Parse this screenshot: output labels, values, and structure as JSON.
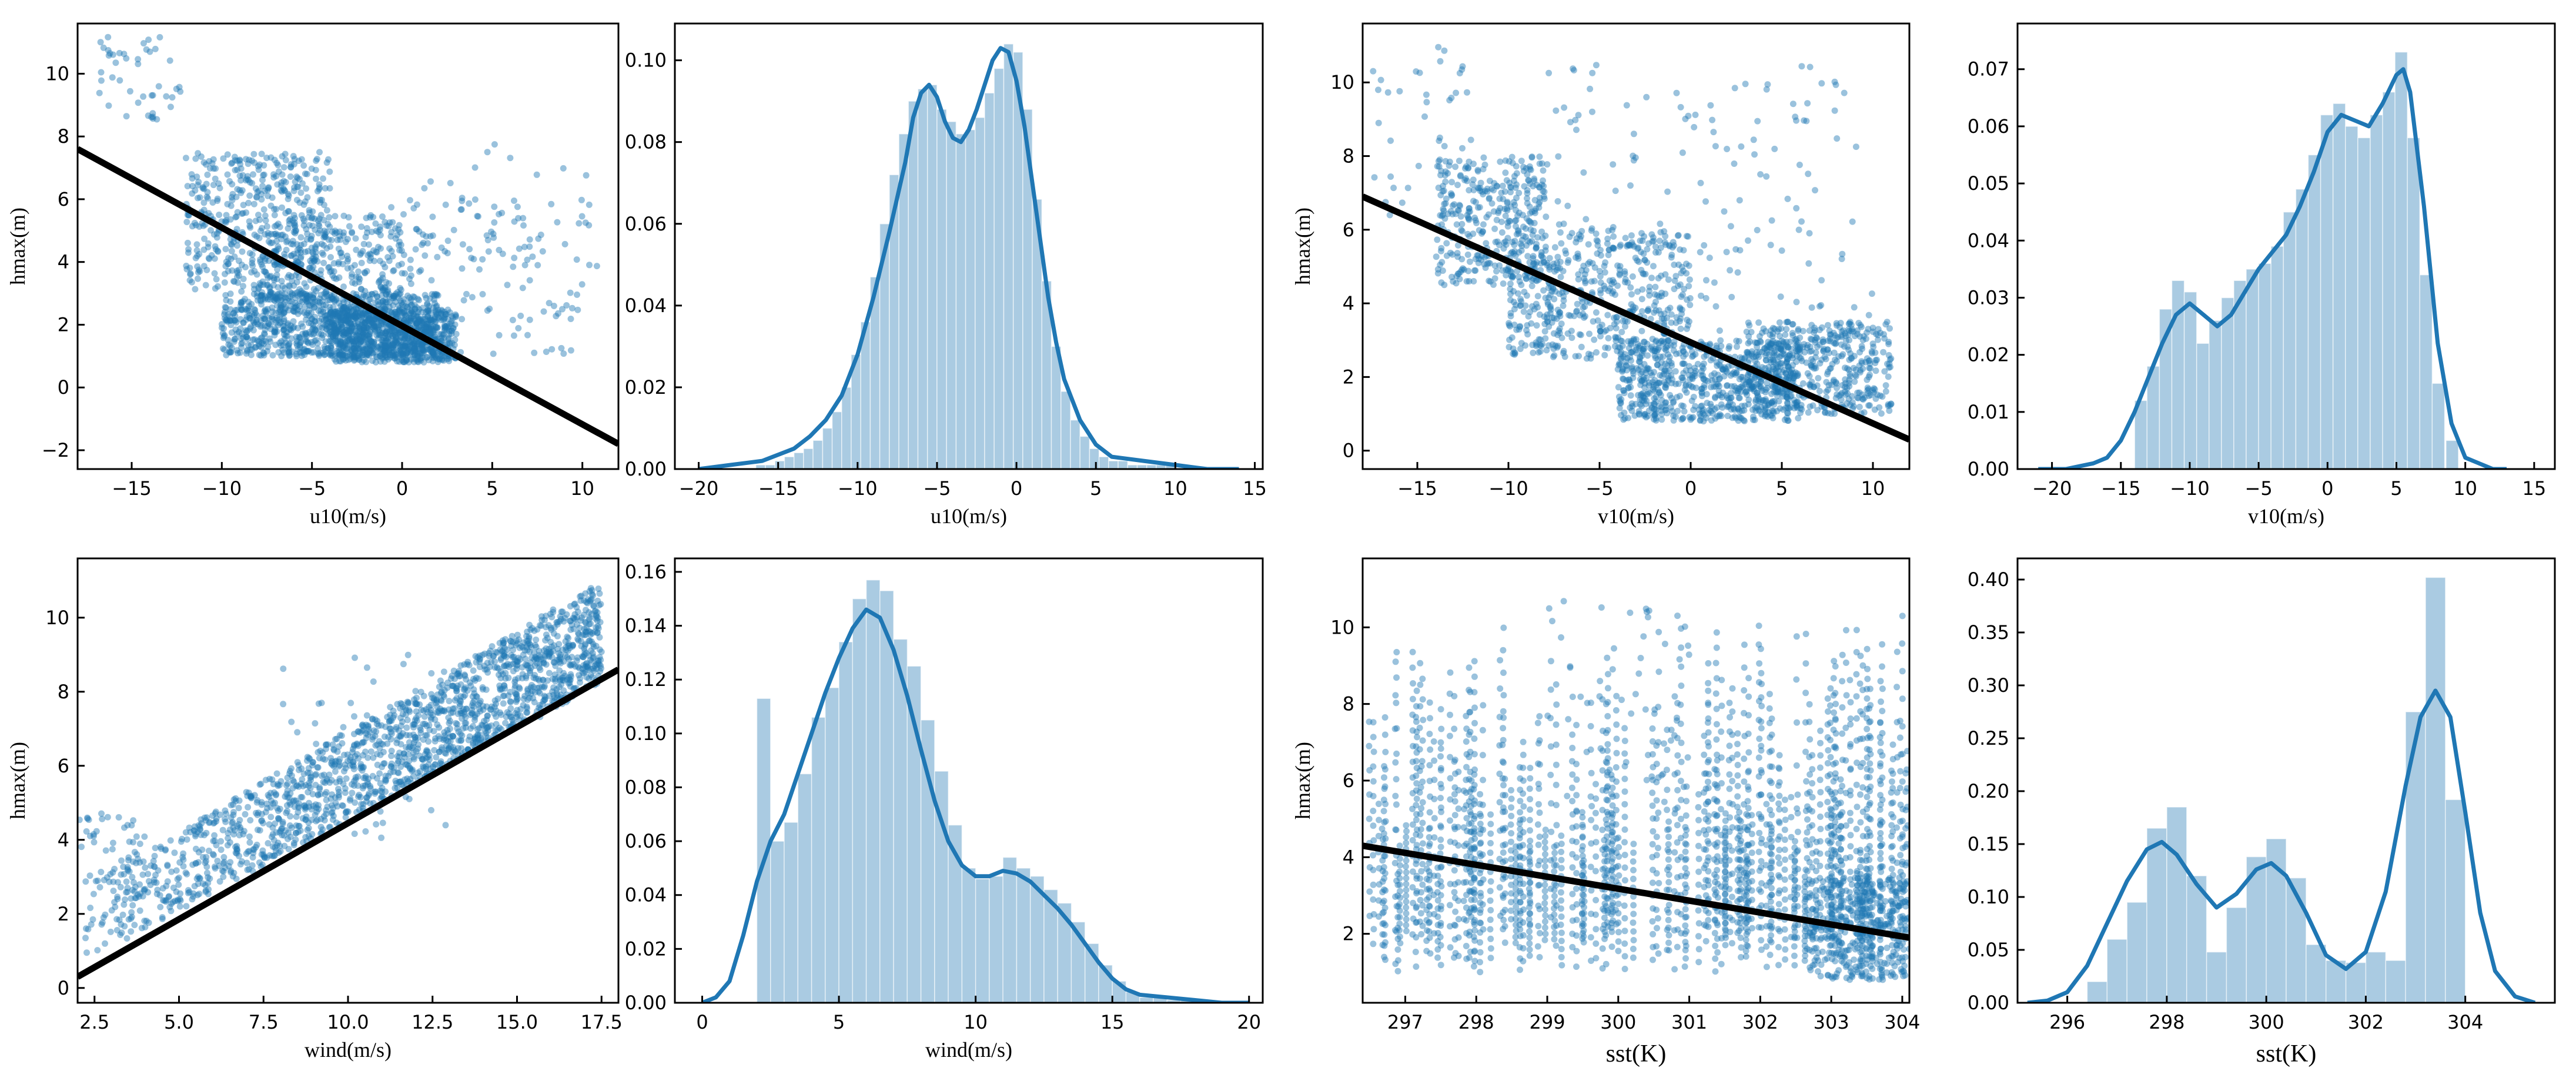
{
  "figure": {
    "title": ""
  },
  "chart_data": [
    {
      "type": "scatter",
      "id": "p1",
      "xlabel": "u10(m/s)",
      "ylabel": "hmax(m)",
      "xlim": [
        -18,
        12
      ],
      "ylim": [
        -2.6,
        11.6
      ],
      "xticks": [
        -15,
        -10,
        -5,
        0,
        5,
        10
      ],
      "xtick_labels": [
        "−15",
        "−10",
        "−5",
        "0",
        "5",
        "10"
      ],
      "yticks": [
        -2,
        0,
        2,
        4,
        6,
        8,
        10
      ],
      "ytick_labels": [
        "−2",
        "0",
        "2",
        "4",
        "6",
        "8",
        "10"
      ],
      "fit_line": {
        "x": [
          -18,
          12
        ],
        "y": [
          7.6,
          -1.8
        ]
      },
      "clusters": [
        {
          "x": [
            -10,
            2
          ],
          "y": [
            1.0,
            3.0
          ],
          "n": 900
        },
        {
          "x": [
            -4,
            3
          ],
          "y": [
            0.8,
            2.5
          ],
          "n": 700
        },
        {
          "x": [
            -12,
            -4
          ],
          "y": [
            3.0,
            7.5
          ],
          "n": 450
        },
        {
          "x": [
            -8,
            0
          ],
          "y": [
            2.5,
            5.5
          ],
          "n": 300
        },
        {
          "x": [
            -17,
            -12
          ],
          "y": [
            8.5,
            11.2
          ],
          "n": 45
        },
        {
          "x": [
            -2,
            10
          ],
          "y": [
            1.0,
            6.0
          ],
          "n": 140
        },
        {
          "x": [
            0,
            11
          ],
          "y": [
            3.0,
            8.0
          ],
          "n": 40
        }
      ]
    },
    {
      "type": "bar",
      "id": "p2",
      "xlabel": "u10(m/s)",
      "ylabel": "",
      "xlim": [
        -21.5,
        15.5
      ],
      "ylim": [
        0,
        0.109
      ],
      "xticks": [
        -20,
        -15,
        -10,
        -5,
        0,
        5,
        10,
        15
      ],
      "xtick_labels": [
        "−20",
        "−15",
        "−10",
        "−5",
        "0",
        "5",
        "10",
        "15"
      ],
      "yticks": [
        0,
        0.02,
        0.04,
        0.06,
        0.08,
        0.1
      ],
      "ytick_labels": [
        "0.00",
        "0.02",
        "0.04",
        "0.06",
        "0.08",
        "0.10"
      ],
      "bin_width": 0.6,
      "bins": [
        -16.4,
        -15.8,
        -15.2,
        -14.6,
        -14.0,
        -13.4,
        -12.8,
        -12.2,
        -11.6,
        -11.0,
        -10.4,
        -9.8,
        -9.2,
        -8.6,
        -8.0,
        -7.4,
        -6.8,
        -6.2,
        -5.6,
        -5.0,
        -4.4,
        -3.8,
        -3.2,
        -2.6,
        -2.0,
        -1.4,
        -0.8,
        -0.2,
        0.4,
        1.0,
        1.6,
        2.2,
        2.8,
        3.4,
        4.0,
        4.6,
        5.2,
        5.8,
        6.4,
        7.0,
        7.6,
        8.2,
        8.8,
        9.4
      ],
      "values": [
        0.001,
        0.001,
        0.002,
        0.003,
        0.004,
        0.005,
        0.007,
        0.01,
        0.014,
        0.02,
        0.028,
        0.036,
        0.047,
        0.06,
        0.072,
        0.082,
        0.09,
        0.093,
        0.094,
        0.088,
        0.085,
        0.082,
        0.083,
        0.086,
        0.092,
        0.098,
        0.104,
        0.102,
        0.088,
        0.066,
        0.046,
        0.03,
        0.019,
        0.012,
        0.008,
        0.005,
        0.003,
        0.002,
        0.002,
        0.001,
        0.001,
        0.001,
        0.001,
        0.001
      ],
      "kde": {
        "x": [
          -20,
          -18,
          -16,
          -14,
          -13,
          -12,
          -11,
          -10,
          -9,
          -8,
          -7,
          -6.5,
          -6,
          -5.5,
          -5,
          -4.5,
          -4,
          -3.5,
          -3,
          -2.5,
          -2,
          -1.5,
          -1,
          -0.5,
          0,
          0.5,
          1,
          1.5,
          2,
          2.5,
          3,
          4,
          5,
          6,
          8,
          10,
          12,
          14
        ],
        "y": [
          0.0,
          0.001,
          0.002,
          0.005,
          0.008,
          0.012,
          0.018,
          0.028,
          0.042,
          0.058,
          0.075,
          0.086,
          0.092,
          0.094,
          0.091,
          0.085,
          0.081,
          0.08,
          0.083,
          0.088,
          0.094,
          0.1,
          0.103,
          0.102,
          0.095,
          0.084,
          0.07,
          0.056,
          0.042,
          0.031,
          0.022,
          0.012,
          0.006,
          0.003,
          0.002,
          0.001,
          0.0,
          0.0
        ]
      }
    },
    {
      "type": "scatter",
      "id": "p3",
      "xlabel": "v10(m/s)",
      "ylabel": "hmax(m)",
      "xlim": [
        -18,
        12
      ],
      "ylim": [
        -0.5,
        11.6
      ],
      "xticks": [
        -15,
        -10,
        -5,
        0,
        5,
        10
      ],
      "xtick_labels": [
        "−15",
        "−10",
        "−5",
        "0",
        "5",
        "10"
      ],
      "yticks": [
        0,
        2,
        4,
        6,
        8,
        10
      ],
      "ytick_labels": [
        "0",
        "2",
        "4",
        "6",
        "8",
        "10"
      ],
      "fit_line": {
        "x": [
          -18,
          12
        ],
        "y": [
          6.9,
          0.3
        ]
      },
      "clusters": [
        {
          "x": [
            -14,
            -8
          ],
          "y": [
            4.5,
            8.0
          ],
          "n": 350
        },
        {
          "x": [
            -10,
            0
          ],
          "y": [
            2.5,
            6.0
          ],
          "n": 500
        },
        {
          "x": [
            -4,
            6
          ],
          "y": [
            0.8,
            3.0
          ],
          "n": 700
        },
        {
          "x": [
            3,
            11
          ],
          "y": [
            1.0,
            3.5
          ],
          "n": 450
        },
        {
          "x": [
            -8,
            10
          ],
          "y": [
            3.0,
            10.5
          ],
          "n": 160
        },
        {
          "x": [
            -18,
            -12
          ],
          "y": [
            6.0,
            11.2
          ],
          "n": 40
        }
      ]
    },
    {
      "type": "bar",
      "id": "p4",
      "xlabel": "v10(m/s)",
      "ylabel": "",
      "xlim": [
        -22.5,
        16.5
      ],
      "ylim": [
        0,
        0.078
      ],
      "xticks": [
        -20,
        -15,
        -10,
        -5,
        0,
        5,
        10,
        15
      ],
      "xtick_labels": [
        "−20",
        "−15",
        "−10",
        "−5",
        "0",
        "5",
        "10",
        "15"
      ],
      "yticks": [
        0,
        0.01,
        0.02,
        0.03,
        0.04,
        0.05,
        0.06,
        0.07
      ],
      "ytick_labels": [
        "0.00",
        "0.01",
        "0.02",
        "0.03",
        "0.04",
        "0.05",
        "0.06",
        "0.07"
      ],
      "bin_width": 0.9,
      "bins": [
        -14.0,
        -13.1,
        -12.2,
        -11.3,
        -10.4,
        -9.5,
        -8.6,
        -7.7,
        -6.8,
        -5.9,
        -5.0,
        -4.1,
        -3.2,
        -2.3,
        -1.4,
        -0.5,
        0.4,
        1.3,
        2.2,
        3.1,
        4.0,
        4.9,
        5.8,
        6.7,
        7.6,
        8.6
      ],
      "values": [
        0.012,
        0.018,
        0.028,
        0.033,
        0.031,
        0.022,
        0.026,
        0.03,
        0.033,
        0.035,
        0.036,
        0.039,
        0.045,
        0.049,
        0.055,
        0.062,
        0.064,
        0.06,
        0.058,
        0.062,
        0.066,
        0.073,
        0.058,
        0.034,
        0.015,
        0.005
      ],
      "kde": {
        "x": [
          -21,
          -19,
          -17,
          -16,
          -15,
          -14,
          -13,
          -12,
          -11,
          -10,
          -9,
          -8,
          -7,
          -6,
          -5,
          -4,
          -3,
          -2,
          -1,
          0,
          1,
          2,
          3,
          4,
          5,
          5.5,
          6,
          7,
          8,
          9,
          10,
          11,
          12,
          13
        ],
        "y": [
          0.0,
          0.0,
          0.001,
          0.002,
          0.005,
          0.01,
          0.016,
          0.022,
          0.027,
          0.029,
          0.027,
          0.025,
          0.027,
          0.031,
          0.035,
          0.038,
          0.041,
          0.046,
          0.052,
          0.059,
          0.062,
          0.061,
          0.06,
          0.064,
          0.069,
          0.07,
          0.066,
          0.046,
          0.022,
          0.008,
          0.002,
          0.001,
          0.0,
          0.0
        ]
      }
    },
    {
      "type": "scatter",
      "id": "p5",
      "xlabel": "wind(m/s)",
      "ylabel": "hmax(m)",
      "xlim": [
        2.0,
        18.0
      ],
      "ylim": [
        -0.4,
        11.6
      ],
      "xticks": [
        2.5,
        5.0,
        7.5,
        10.0,
        12.5,
        15.0,
        17.5
      ],
      "xtick_labels": [
        "2.5",
        "5.0",
        "7.5",
        "10.0",
        "12.5",
        "15.0",
        "17.5"
      ],
      "yticks": [
        0,
        2,
        4,
        6,
        8,
        10
      ],
      "ytick_labels": [
        "0",
        "2",
        "4",
        "6",
        "8",
        "10"
      ],
      "fit_line": {
        "x": [
          2.0,
          18.0
        ],
        "y": [
          0.3,
          8.6
        ]
      },
      "band": {
        "x": [
          2.0,
          17.5
        ],
        "low": [
          0.6,
          8.2
        ],
        "high": [
          2.6,
          11.0
        ],
        "n": 1700
      },
      "clusters": [
        {
          "x": [
            2,
            4
          ],
          "y": [
            2.5,
            4.8
          ],
          "n": 60
        },
        {
          "x": [
            8,
            13
          ],
          "y": [
            4.0,
            9.0
          ],
          "n": 50
        }
      ]
    },
    {
      "type": "bar",
      "id": "p6",
      "xlabel": "wind(m/s)",
      "ylabel": "",
      "xlim": [
        -1.0,
        20.5
      ],
      "ylim": [
        0,
        0.165
      ],
      "xticks": [
        0,
        5,
        10,
        15,
        20
      ],
      "xtick_labels": [
        "0",
        "5",
        "10",
        "15",
        "20"
      ],
      "yticks": [
        0,
        0.02,
        0.04,
        0.06,
        0.08,
        0.1,
        0.12,
        0.14,
        0.16
      ],
      "ytick_labels": [
        "0.00",
        "0.02",
        "0.04",
        "0.06",
        "0.08",
        "0.10",
        "0.12",
        "0.14",
        "0.16"
      ],
      "bin_width": 0.5,
      "bins": [
        2.0,
        2.5,
        3.0,
        3.5,
        4.0,
        4.5,
        5.0,
        5.5,
        6.0,
        6.5,
        7.0,
        7.5,
        8.0,
        8.5,
        9.0,
        9.5,
        10.0,
        10.5,
        11.0,
        11.5,
        12.0,
        12.5,
        13.0,
        13.5,
        14.0,
        14.5,
        15.0,
        15.5,
        16.0,
        16.5,
        17.0,
        17.5
      ],
      "values": [
        0.113,
        0.06,
        0.067,
        0.085,
        0.106,
        0.117,
        0.134,
        0.15,
        0.157,
        0.153,
        0.135,
        0.125,
        0.105,
        0.086,
        0.066,
        0.05,
        0.046,
        0.047,
        0.054,
        0.05,
        0.047,
        0.042,
        0.037,
        0.03,
        0.022,
        0.014,
        0.008,
        0.004,
        0.002,
        0.002,
        0.001,
        0.001
      ],
      "kde": {
        "x": [
          0.0,
          0.5,
          1.0,
          1.5,
          2.0,
          2.5,
          3.0,
          3.5,
          4.0,
          4.5,
          5.0,
          5.5,
          6.0,
          6.5,
          7.0,
          7.5,
          8.0,
          8.5,
          9.0,
          9.5,
          10.0,
          10.5,
          11.0,
          11.5,
          12.0,
          12.5,
          13.0,
          13.5,
          14.0,
          14.5,
          15.0,
          15.5,
          16.0,
          17.0,
          18.0,
          19.0,
          20.0
        ],
        "y": [
          0.0,
          0.002,
          0.008,
          0.025,
          0.045,
          0.06,
          0.07,
          0.085,
          0.1,
          0.115,
          0.128,
          0.139,
          0.146,
          0.143,
          0.131,
          0.114,
          0.094,
          0.075,
          0.06,
          0.051,
          0.047,
          0.047,
          0.049,
          0.048,
          0.045,
          0.04,
          0.035,
          0.029,
          0.022,
          0.015,
          0.009,
          0.005,
          0.003,
          0.002,
          0.001,
          0.0,
          0.0
        ]
      }
    },
    {
      "type": "scatter",
      "id": "p7",
      "xlabel": "sst(K)",
      "ylabel": "hmax(m)",
      "xlim": [
        296.4,
        304.1
      ],
      "ylim": [
        0.2,
        11.8
      ],
      "xticks": [
        297,
        298,
        299,
        300,
        301,
        302,
        303,
        304
      ],
      "xtick_labels": [
        "297",
        "298",
        "299",
        "300",
        "301",
        "302",
        "303",
        "304"
      ],
      "yticks": [
        2,
        4,
        6,
        8,
        10
      ],
      "ytick_labels": [
        "2",
        "4",
        "6",
        "8",
        "10"
      ],
      "fit_line": {
        "x": [
          296.4,
          304.1
        ],
        "y": [
          4.3,
          1.9
        ]
      },
      "columns": {
        "x": [
          296.4,
          304.1
        ],
        "count": 170,
        "ymin": [
          1.0,
          2.5
        ],
        "ymax": [
          3.0,
          9.0
        ],
        "pts_per_col": [
          8,
          20
        ]
      },
      "clusters": [
        {
          "x": [
            302.7,
            304.1
          ],
          "y": [
            0.8,
            3.5
          ],
          "n": 320
        },
        {
          "x": [
            299.0,
            301.0
          ],
          "y": [
            5.0,
            11.0
          ],
          "n": 60
        }
      ]
    },
    {
      "type": "bar",
      "id": "p8",
      "xlabel": "sst(K)",
      "ylabel": "",
      "xlim": [
        295.0,
        305.8
      ],
      "ylim": [
        0,
        0.42
      ],
      "xticks": [
        296,
        298,
        300,
        302,
        304
      ],
      "xtick_labels": [
        "296",
        "298",
        "300",
        "302",
        "304"
      ],
      "yticks": [
        0,
        0.05,
        0.1,
        0.15,
        0.2,
        0.25,
        0.3,
        0.35,
        0.4
      ],
      "ytick_labels": [
        "0.00",
        "0.05",
        "0.10",
        "0.15",
        "0.20",
        "0.25",
        "0.30",
        "0.35",
        "0.40"
      ],
      "bin_width": 0.4,
      "bins": [
        296.4,
        296.8,
        297.2,
        297.6,
        298.0,
        298.4,
        298.8,
        299.2,
        299.6,
        300.0,
        300.4,
        300.8,
        301.2,
        301.6,
        302.0,
        302.4,
        302.8,
        303.2,
        303.6
      ],
      "values": [
        0.02,
        0.06,
        0.095,
        0.165,
        0.185,
        0.12,
        0.048,
        0.09,
        0.138,
        0.155,
        0.118,
        0.055,
        0.04,
        0.038,
        0.048,
        0.04,
        0.275,
        0.402,
        0.192
      ],
      "kde": {
        "x": [
          295.2,
          295.6,
          296.0,
          296.4,
          296.8,
          297.2,
          297.6,
          297.9,
          298.2,
          298.6,
          299.0,
          299.4,
          299.8,
          300.1,
          300.4,
          300.8,
          301.2,
          301.6,
          302.0,
          302.4,
          302.8,
          303.1,
          303.4,
          303.7,
          304.0,
          304.3,
          304.6,
          305.0,
          305.4
        ],
        "y": [
          0.0,
          0.002,
          0.01,
          0.035,
          0.075,
          0.115,
          0.145,
          0.152,
          0.14,
          0.112,
          0.09,
          0.103,
          0.126,
          0.132,
          0.12,
          0.085,
          0.045,
          0.032,
          0.048,
          0.105,
          0.205,
          0.27,
          0.295,
          0.27,
          0.18,
          0.085,
          0.03,
          0.006,
          0.0
        ]
      }
    }
  ]
}
